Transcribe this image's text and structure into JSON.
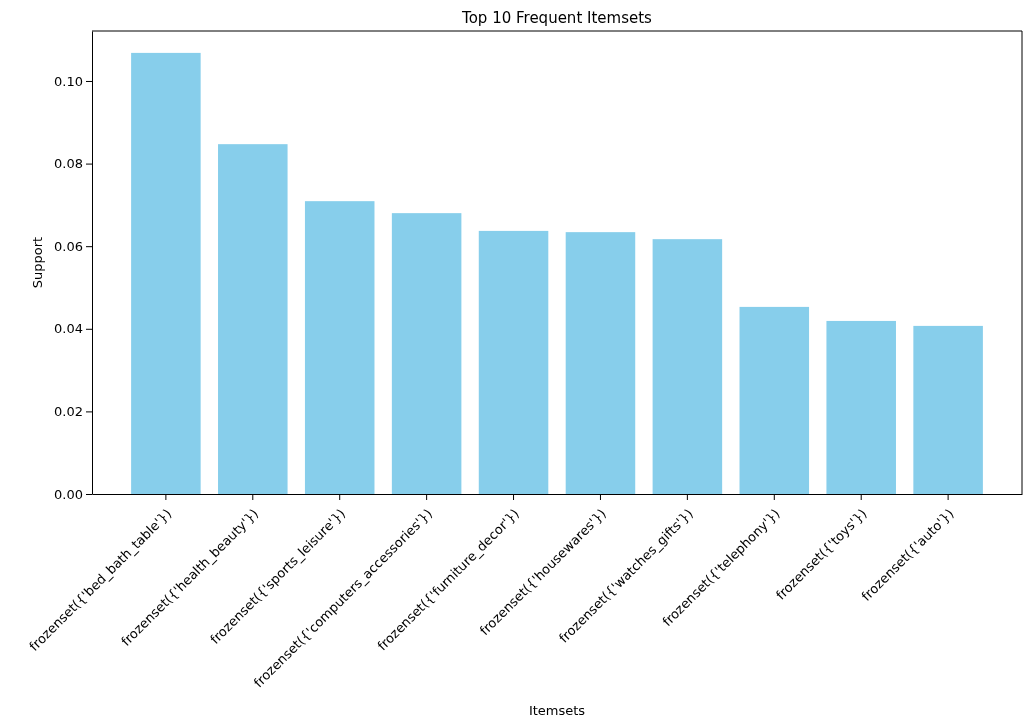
{
  "chart_data": {
    "type": "bar",
    "title": "Top 10 Frequent Itemsets",
    "xlabel": "Itemsets",
    "ylabel": "Support",
    "categories": [
      "frozenset({'bed_bath_table'})",
      "frozenset({'health_beauty'})",
      "frozenset({'sports_leisure'})",
      "frozenset({'computers_accessories'})",
      "frozenset({'furniture_decor'})",
      "frozenset({'housewares'})",
      "frozenset({'watches_gifts'})",
      "frozenset({'telephony'})",
      "frozenset({'toys'})",
      "frozenset({'auto'})"
    ],
    "values": [
      0.1068,
      0.0847,
      0.0709,
      0.068,
      0.0637,
      0.0634,
      0.0617,
      0.0453,
      0.0419,
      0.0407
    ],
    "color": "#87ceeb",
    "ylim": [
      0,
      0.1121
    ],
    "yticks": [
      {
        "value": 0,
        "label": "0.00"
      },
      {
        "value": 0.02,
        "label": "0.02"
      },
      {
        "value": 0.04,
        "label": "0.04"
      },
      {
        "value": 0.06,
        "label": "0.06"
      },
      {
        "value": 0.08,
        "label": "0.08"
      },
      {
        "value": 0.1,
        "label": "0.10"
      }
    ],
    "grid": false
  }
}
